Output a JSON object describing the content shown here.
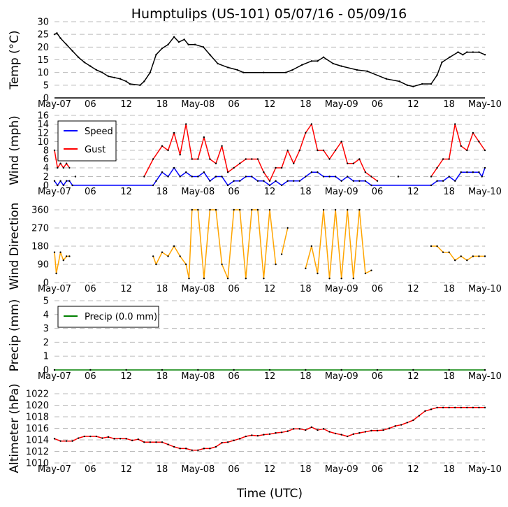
{
  "chart_data": {
    "type": "line",
    "title": "Humptulips (US-101) 05/07/16 - 05/09/16",
    "xlabel": "Time (UTC)",
    "x_unit": "hours since May-07 00:00 UTC",
    "xlim": [
      0,
      72
    ],
    "xticks": [
      0,
      6,
      12,
      18,
      24,
      30,
      36,
      42,
      48,
      54,
      60,
      66,
      72
    ],
    "xticklabels": [
      "May-07",
      "06",
      "12",
      "18",
      "May-08",
      "06",
      "12",
      "18",
      "May-09",
      "06",
      "12",
      "18",
      "May-10"
    ],
    "panels": [
      {
        "id": "temp",
        "ylabel": "Temp (°C)",
        "ylim": [
          0,
          30
        ],
        "yticks": [
          0,
          5,
          10,
          15,
          20,
          25,
          30
        ],
        "series": [
          {
            "name": "Temp",
            "color": "#000000",
            "x": [
              0,
              0.4,
              1,
              2,
              3,
              4,
              5,
              6,
              7,
              8,
              9,
              10,
              11,
              12,
              12.6,
              14.3,
              15,
              16,
              17,
              18,
              19,
              20,
              20.8,
              21.7,
              22.4,
              23.5,
              24.9,
              26,
              27.3,
              29,
              30.6,
              31.6,
              35,
              38.7,
              39.8,
              41.4,
              43,
              44,
              45,
              46.6,
              48,
              50.6,
              52.3,
              55.5,
              57.7,
              59,
              60,
              61.5,
              63,
              64,
              64.8,
              66.1,
              67.5,
              68.3,
              69,
              70,
              71,
              72
            ],
            "y": [
              25,
              25.5,
              23.5,
              21,
              18.5,
              16,
              14,
              12.5,
              11,
              10,
              8.5,
              8,
              7.5,
              6.5,
              5.5,
              5,
              6.5,
              10,
              17,
              19.5,
              21,
              24,
              22,
              23,
              21,
              21,
              20,
              17,
              13.5,
              12,
              11,
              10,
              10,
              10,
              11,
              13,
              14.5,
              14.5,
              16,
              13.5,
              12.5,
              11,
              10.5,
              7.5,
              6.5,
              5,
              4.5,
              5.5,
              5.5,
              9,
              14,
              16,
              18,
              17,
              18,
              18,
              18,
              17
            ]
          }
        ]
      },
      {
        "id": "wind",
        "ylabel": "Wind (mph)",
        "ylim": [
          0,
          16
        ],
        "yticks": [
          0,
          2,
          4,
          6,
          8,
          10,
          12,
          14,
          16
        ],
        "legend": {
          "placement": "top-left",
          "entries": [
            "Speed",
            "Gust"
          ]
        },
        "series": [
          {
            "name": "Speed",
            "color": "#0000ff",
            "x": [
              0,
              0.5,
              1,
              1.5,
              2,
              2.5,
              3,
              16.5,
              17,
              18,
              19,
              20,
              21,
              22,
              23,
              24,
              25,
              26,
              27,
              28,
              29,
              30,
              31,
              32,
              33,
              34,
              35,
              36,
              37,
              38,
              39,
              40,
              41,
              42,
              43,
              44,
              45,
              46,
              47,
              48,
              49,
              50,
              51,
              52,
              53,
              63,
              64,
              65,
              66,
              67,
              68,
              69,
              70,
              71,
              71.5,
              72
            ],
            "y": [
              1,
              0,
              1,
              0,
              1,
              1,
              0,
              0,
              1,
              3,
              2,
              4,
              2,
              3,
              2,
              2,
              3,
              1,
              2,
              2,
              0,
              1,
              1,
              2,
              2,
              1,
              1,
              0,
              1,
              0,
              1,
              1,
              1,
              2,
              3,
              3,
              2,
              2,
              2,
              1,
              2,
              1,
              1,
              1,
              0,
              0,
              1,
              1,
              2,
              1,
              3,
              3,
              3,
              3,
              2,
              4
            ]
          },
          {
            "name": "Gust",
            "color": "#ff0000",
            "x": [
              0,
              0.5,
              1,
              1.5,
              2,
              2.5,
              null,
              3.5,
              null,
              15,
              16.5,
              18,
              19,
              20,
              21,
              22,
              23,
              24,
              25,
              26,
              27,
              28,
              29,
              30,
              31,
              32,
              33,
              34,
              35,
              36,
              37,
              38,
              39,
              40,
              41,
              42,
              43,
              44,
              45,
              46,
              47,
              48,
              49,
              50,
              51,
              52,
              53,
              54,
              null,
              57.5,
              null,
              63,
              64,
              65,
              66,
              67,
              68,
              69,
              70,
              71,
              72
            ],
            "y": [
              8,
              4,
              5,
              4,
              5,
              4,
              null,
              2,
              null,
              2,
              6,
              9,
              8,
              12,
              7,
              14,
              6,
              6,
              11,
              6,
              5,
              9,
              3,
              4,
              5,
              6,
              6,
              6,
              3,
              1,
              4,
              4,
              8,
              5,
              8,
              12,
              14,
              8,
              8,
              6,
              8,
              10,
              5,
              5,
              6,
              3,
              2,
              1,
              null,
              2,
              null,
              2,
              4,
              6,
              6,
              14,
              9,
              8,
              12,
              10,
              8
            ]
          }
        ]
      },
      {
        "id": "winddir",
        "ylabel": "Wind Direction",
        "ylim": [
          0,
          360
        ],
        "yticks": [
          0,
          90,
          180,
          270,
          360
        ],
        "series": [
          {
            "name": "Direction",
            "color": "#ffa500",
            "x": [
              0,
              0.3,
              1,
              1.5,
              2,
              2.5,
              null,
              16.5,
              17,
              18,
              19,
              20,
              21,
              22,
              22.5,
              23,
              24,
              25,
              26,
              27,
              28,
              29,
              30,
              31,
              32,
              33,
              34,
              35,
              36,
              37,
              null,
              38,
              39,
              null,
              42,
              43,
              44,
              45,
              46,
              47,
              48,
              49,
              50,
              51,
              52,
              53,
              null,
              63,
              64,
              65,
              66,
              67,
              68,
              69,
              70,
              71,
              72
            ],
            "y": [
              150,
              45,
              150,
              110,
              130,
              130,
              null,
              130,
              90,
              150,
              130,
              180,
              130,
              90,
              20,
              360,
              360,
              20,
              360,
              360,
              90,
              20,
              360,
              360,
              20,
              360,
              360,
              20,
              360,
              90,
              null,
              140,
              270,
              null,
              70,
              180,
              45,
              360,
              20,
              360,
              20,
              360,
              20,
              360,
              45,
              60,
              null,
              180,
              180,
              150,
              150,
              110,
              130,
              110,
              130,
              130,
              130
            ]
          }
        ]
      },
      {
        "id": "precip",
        "ylabel": "Precip (mm)",
        "ylim": [
          0,
          5
        ],
        "yticks": [
          0,
          1,
          2,
          3,
          4,
          5
        ],
        "legend": {
          "placement": "top-left",
          "entries": [
            "Precip (0.0 mm)"
          ]
        },
        "series": [
          {
            "name": "Precip (0.0 mm)",
            "color": "#008000",
            "x": [
              0,
              6,
              12,
              18,
              24,
              30,
              36,
              42,
              48,
              54,
              60,
              66,
              72
            ],
            "y": [
              0,
              0,
              0,
              0,
              0,
              0,
              0,
              0,
              0,
              0,
              0,
              0,
              0
            ]
          }
        ]
      },
      {
        "id": "altimeter",
        "ylabel": "Altimeter (hPa)",
        "ylim": [
          1010,
          1022
        ],
        "yticks": [
          1010,
          1012,
          1014,
          1016,
          1018,
          1020,
          1022
        ],
        "series": [
          {
            "name": "Altimeter",
            "color": "#ff0000",
            "x": [
              0,
              1,
              2,
              3,
              4,
              5,
              6,
              7,
              8,
              9,
              10,
              11,
              12,
              13,
              14,
              15,
              16,
              17,
              18,
              19,
              20,
              21,
              22,
              23,
              24,
              25,
              26,
              27,
              28,
              29,
              30,
              31,
              32,
              33,
              34,
              35,
              36,
              37,
              38,
              39,
              40,
              41,
              42,
              43,
              44,
              45,
              46,
              47,
              48,
              49,
              50,
              51,
              52,
              53,
              54,
              55,
              56,
              57,
              58,
              59,
              60,
              61,
              62,
              63,
              64,
              65,
              66,
              67,
              68,
              69,
              70,
              71,
              72
            ],
            "y": [
              1014.2,
              1013.8,
              1013.8,
              1013.8,
              1014.3,
              1014.6,
              1014.6,
              1014.6,
              1014.3,
              1014.5,
              1014.2,
              1014.2,
              1014.2,
              1013.9,
              1014.1,
              1013.6,
              1013.6,
              1013.6,
              1013.6,
              1013.2,
              1012.8,
              1012.5,
              1012.5,
              1012.2,
              1012.2,
              1012.5,
              1012.5,
              1012.8,
              1013.5,
              1013.6,
              1013.9,
              1014.2,
              1014.6,
              1014.8,
              1014.7,
              1014.9,
              1015.0,
              1015.2,
              1015.3,
              1015.5,
              1015.9,
              1015.9,
              1015.7,
              1016.2,
              1015.7,
              1015.9,
              1015.4,
              1015.1,
              1014.9,
              1014.6,
              1015.0,
              1015.2,
              1015.4,
              1015.6,
              1015.6,
              1015.7,
              1016.0,
              1016.4,
              1016.6,
              1017.0,
              1017.4,
              1018.2,
              1019.0,
              1019.3,
              1019.6,
              1019.6,
              1019.6,
              1019.6,
              1019.6,
              1019.6,
              1019.6,
              1019.6,
              1019.6
            ]
          }
        ]
      }
    ]
  }
}
